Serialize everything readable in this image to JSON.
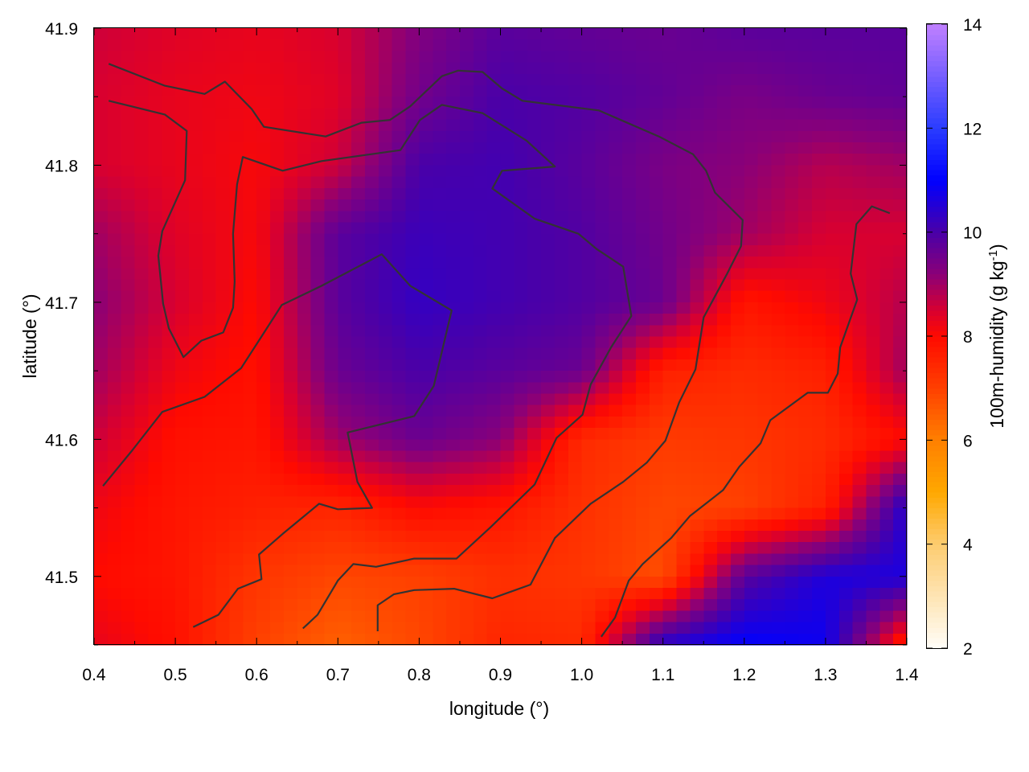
{
  "chart_data": {
    "type": "heatmap",
    "title": "",
    "xlabel": "longitude (°)",
    "ylabel": "latitude (°)",
    "colorbar_label": "100m-humidity (g kg",
    "colorbar_label_sup": "-1",
    "colorbar_label_end": ")",
    "xlim": [
      0.4,
      1.4
    ],
    "ylim": [
      41.45,
      41.9
    ],
    "zlim": [
      2,
      14
    ],
    "xticks": [
      "0.4",
      "0.5",
      "0.6",
      "0.7",
      "0.8",
      "0.9",
      "1.0",
      "1.1",
      "1.2",
      "1.3",
      "1.4"
    ],
    "yticks": [
      "41.5",
      "41.6",
      "41.7",
      "41.8",
      "41.9"
    ],
    "cbticks": [
      "2",
      "4",
      "6",
      "8",
      "10",
      "12",
      "14"
    ],
    "grid": false,
    "palette": [
      {
        "z": 2,
        "color": "#fffdf8"
      },
      {
        "z": 4,
        "color": "#fdcc70"
      },
      {
        "z": 5,
        "color": "#ffa800"
      },
      {
        "z": 6,
        "color": "#ff8000"
      },
      {
        "z": 7,
        "color": "#ff4000"
      },
      {
        "z": 8,
        "color": "#ff0a00"
      },
      {
        "z": 8.5,
        "color": "#d80030"
      },
      {
        "z": 9.2,
        "color": "#8a0078"
      },
      {
        "z": 10,
        "color": "#4a00a8"
      },
      {
        "z": 11,
        "color": "#0000ff"
      },
      {
        "z": 12,
        "color": "#2a3cff"
      },
      {
        "z": 14,
        "color": "#c080ff"
      }
    ],
    "grid_lon": [
      0.4,
      0.5,
      0.6,
      0.7,
      0.8,
      0.9,
      1.0,
      1.1,
      1.2,
      1.3,
      1.4
    ],
    "grid_lat": [
      41.9,
      41.85,
      41.8,
      41.75,
      41.7,
      41.65,
      41.6,
      41.55,
      41.5,
      41.45
    ],
    "values": [
      [
        8.6,
        8.4,
        8.3,
        8.5,
        9.3,
        9.8,
        9.7,
        9.6,
        9.8,
        9.8,
        9.8
      ],
      [
        8.5,
        8.3,
        8.2,
        8.4,
        9.5,
        10.0,
        9.9,
        9.7,
        9.4,
        9.6,
        9.7
      ],
      [
        8.5,
        8.3,
        8.1,
        8.6,
        10.0,
        10.1,
        9.8,
        9.4,
        9.2,
        8.8,
        9.0
      ],
      [
        9.0,
        8.4,
        8.1,
        9.8,
        10.2,
        10.1,
        9.9,
        9.5,
        9.0,
        8.5,
        8.5
      ],
      [
        9.2,
        8.5,
        8.0,
        9.8,
        10.3,
        10.1,
        9.9,
        9.6,
        7.8,
        8.2,
        8.8
      ],
      [
        9.0,
        8.2,
        7.9,
        9.6,
        10.0,
        9.8,
        9.6,
        7.6,
        7.4,
        7.6,
        9.0
      ],
      [
        8.6,
        7.9,
        7.8,
        9.0,
        9.6,
        9.2,
        7.4,
        7.1,
        7.2,
        7.4,
        8.0
      ],
      [
        8.2,
        7.8,
        7.6,
        7.5,
        8.0,
        7.8,
        7.3,
        6.9,
        7.0,
        7.6,
        10.5
      ],
      [
        8.0,
        7.8,
        7.2,
        6.9,
        7.0,
        7.3,
        7.2,
        6.8,
        9.8,
        10.6,
        10.6
      ],
      [
        8.3,
        7.9,
        7.0,
        6.5,
        6.9,
        7.5,
        7.4,
        10.5,
        11.0,
        10.8,
        7.5
      ]
    ],
    "contour_color": "#333333",
    "contours": [
      [
        [
          0.411,
          41.566
        ],
        [
          0.447,
          41.592
        ],
        [
          0.484,
          41.62
        ],
        [
          0.536,
          41.631
        ],
        [
          0.581,
          41.652
        ],
        [
          0.606,
          41.675
        ],
        [
          0.631,
          41.698
        ],
        [
          0.68,
          41.712
        ],
        [
          0.754,
          41.735
        ],
        [
          0.789,
          41.712
        ],
        [
          0.84,
          41.694
        ],
        [
          0.818,
          41.639
        ],
        [
          0.794,
          41.617
        ],
        [
          0.712,
          41.605
        ],
        [
          0.724,
          41.569
        ],
        [
          0.742,
          41.55
        ],
        [
          0.7,
          41.549
        ],
        [
          0.677,
          41.553
        ],
        [
          0.632,
          41.531
        ],
        [
          0.603,
          41.516
        ],
        [
          0.606,
          41.498
        ],
        [
          0.577,
          41.491
        ],
        [
          0.553,
          41.472
        ],
        [
          0.522,
          41.463
        ]
      ],
      [
        [
          0.418,
          41.874
        ],
        [
          0.487,
          41.858
        ],
        [
          0.536,
          41.852
        ],
        [
          0.561,
          41.861
        ],
        [
          0.594,
          41.841
        ],
        [
          0.609,
          41.828
        ],
        [
          0.685,
          41.821
        ],
        [
          0.729,
          41.831
        ],
        [
          0.764,
          41.833
        ],
        [
          0.789,
          41.843
        ],
        [
          0.828,
          41.865
        ],
        [
          0.848,
          41.869
        ],
        [
          0.878,
          41.868
        ],
        [
          0.902,
          41.856
        ],
        [
          0.927,
          41.847
        ],
        [
          1.021,
          41.84
        ],
        [
          1.095,
          41.821
        ],
        [
          1.137,
          41.808
        ],
        [
          1.153,
          41.796
        ],
        [
          1.164,
          41.78
        ],
        [
          1.198,
          41.76
        ],
        [
          1.196,
          41.741
        ],
        [
          1.179,
          41.721
        ],
        [
          1.15,
          41.689
        ],
        [
          1.14,
          41.651
        ],
        [
          1.12,
          41.627
        ],
        [
          1.103,
          41.599
        ],
        [
          1.08,
          41.583
        ],
        [
          1.051,
          41.569
        ],
        [
          1.011,
          41.553
        ],
        [
          0.967,
          41.528
        ],
        [
          0.937,
          41.494
        ],
        [
          0.89,
          41.484
        ],
        [
          0.843,
          41.491
        ],
        [
          0.794,
          41.49
        ],
        [
          0.769,
          41.487
        ],
        [
          0.749,
          41.479
        ],
        [
          0.749,
          41.46
        ]
      ],
      [
        [
          0.418,
          41.847
        ],
        [
          0.487,
          41.837
        ],
        [
          0.514,
          41.825
        ],
        [
          0.512,
          41.789
        ],
        [
          0.484,
          41.752
        ],
        [
          0.479,
          41.734
        ],
        [
          0.485,
          41.699
        ],
        [
          0.492,
          41.681
        ],
        [
          0.51,
          41.66
        ],
        [
          0.532,
          41.672
        ],
        [
          0.559,
          41.678
        ],
        [
          0.571,
          41.696
        ],
        [
          0.573,
          41.715
        ],
        [
          0.571,
          41.75
        ],
        [
          0.576,
          41.786
        ],
        [
          0.583,
          41.806
        ],
        [
          0.632,
          41.796
        ],
        [
          0.68,
          41.803
        ],
        [
          0.777,
          41.811
        ],
        [
          0.801,
          41.833
        ],
        [
          0.828,
          41.844
        ],
        [
          0.878,
          41.838
        ],
        [
          0.932,
          41.818
        ],
        [
          0.967,
          41.799
        ],
        [
          0.902,
          41.796
        ],
        [
          0.89,
          41.783
        ],
        [
          0.942,
          41.761
        ],
        [
          0.996,
          41.75
        ],
        [
          1.018,
          41.739
        ],
        [
          1.051,
          41.726
        ],
        [
          1.061,
          41.69
        ],
        [
          1.036,
          41.667
        ],
        [
          1.011,
          41.64
        ],
        [
          1.001,
          41.618
        ],
        [
          0.969,
          41.601
        ],
        [
          0.942,
          41.567
        ],
        [
          0.888,
          41.536
        ],
        [
          0.846,
          41.513
        ],
        [
          0.794,
          41.513
        ],
        [
          0.747,
          41.507
        ],
        [
          0.719,
          41.509
        ],
        [
          0.7,
          41.497
        ],
        [
          0.675,
          41.472
        ],
        [
          0.657,
          41.462
        ]
      ],
      [
        [
          1.379,
          41.765
        ],
        [
          1.357,
          41.77
        ],
        [
          1.338,
          41.757
        ],
        [
          1.331,
          41.721
        ],
        [
          1.339,
          41.702
        ],
        [
          1.318,
          41.667
        ],
        [
          1.315,
          41.648
        ],
        [
          1.303,
          41.634
        ],
        [
          1.278,
          41.634
        ],
        [
          1.232,
          41.614
        ],
        [
          1.22,
          41.597
        ],
        [
          1.194,
          41.58
        ],
        [
          1.174,
          41.563
        ],
        [
          1.133,
          41.544
        ],
        [
          1.11,
          41.528
        ],
        [
          1.075,
          41.509
        ],
        [
          1.058,
          41.497
        ],
        [
          1.041,
          41.47
        ],
        [
          1.024,
          41.456
        ]
      ]
    ]
  }
}
